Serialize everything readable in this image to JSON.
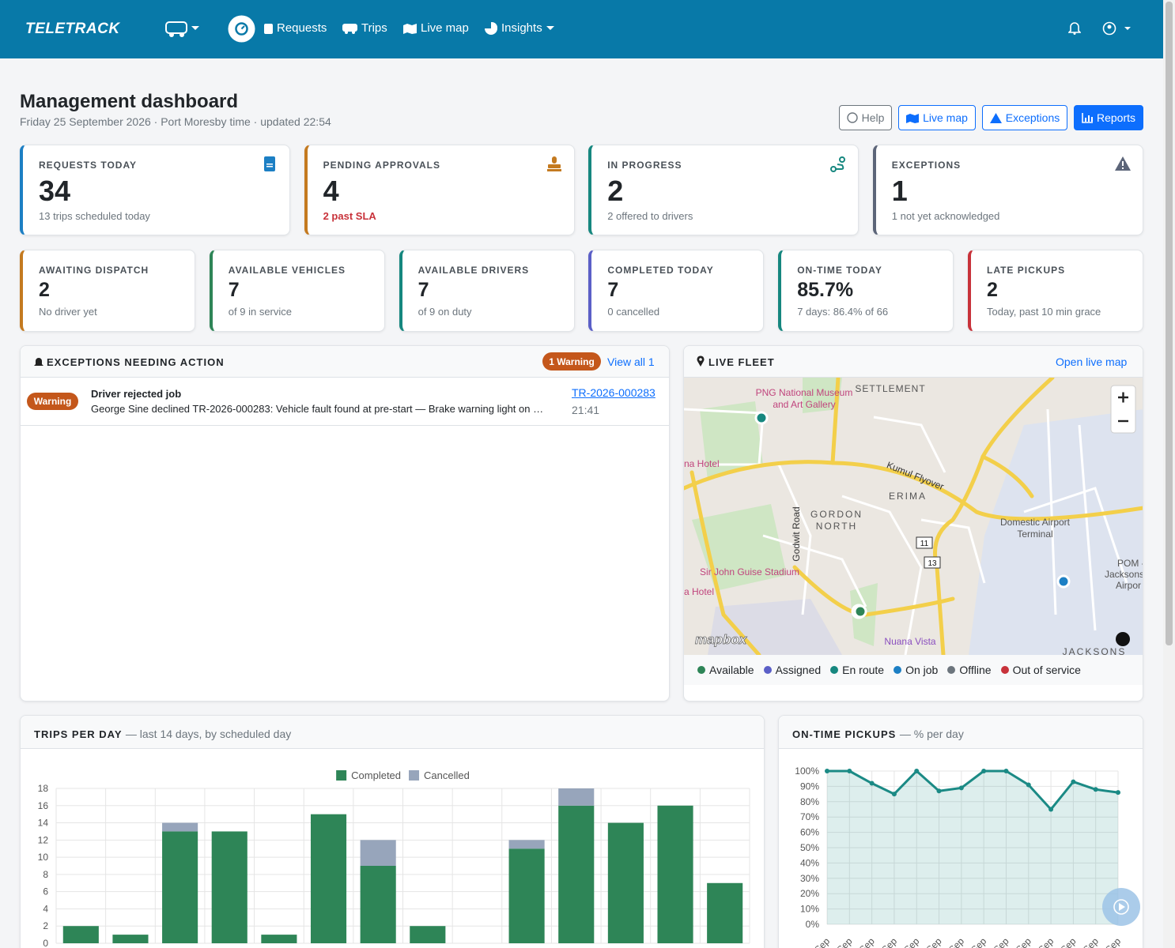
{
  "nav": {
    "logo": "TELETRACK",
    "links": [
      "Requests",
      "Trips",
      "Live map",
      "Insights"
    ]
  },
  "header": {
    "title": "Management dashboard",
    "subtitle": "Friday 25 September 2026 · Port Moresby time · updated 22:54",
    "buttons": [
      "Help",
      "Live map",
      "Exceptions",
      "Reports"
    ]
  },
  "kpis_primary": [
    {
      "label": "REQUESTS TODAY",
      "value": "34",
      "note": "13 trips scheduled today",
      "color": "#1c7fc4"
    },
    {
      "label": "PENDING APPROVALS",
      "value": "4",
      "note": "2 past SLA",
      "color": "#c47a20"
    },
    {
      "label": "IN PROGRESS",
      "value": "2",
      "note": "2 offered to drivers",
      "color": "#16877f"
    },
    {
      "label": "EXCEPTIONS",
      "value": "1",
      "note": "1 not yet acknowledged",
      "color": "#5c6579"
    }
  ],
  "kpis_secondary": [
    {
      "label": "AWAITING DISPATCH",
      "value": "2",
      "note": "No driver yet",
      "color": "#c47a20"
    },
    {
      "label": "AVAILABLE VEHICLES",
      "value": "7",
      "note": "of 9 in service",
      "color": "#2e8557"
    },
    {
      "label": "AVAILABLE DRIVERS",
      "value": "7",
      "note": "of 9 on duty",
      "color": "#16877f"
    },
    {
      "label": "COMPLETED TODAY",
      "value": "7",
      "note": "0 cancelled",
      "color": "#5b5fc7"
    },
    {
      "label": "ON-TIME TODAY",
      "value": "85.7%",
      "note": "7 days: 86.4% of 66",
      "color": "#16877f"
    },
    {
      "label": "LATE PICKUPS",
      "value": "2",
      "note": "Today, past 10 min grace",
      "color": "#c8323a"
    }
  ],
  "exceptions": {
    "title": "EXCEPTIONS NEEDING ACTION",
    "badge": "1 Warning",
    "link": "View all 1",
    "items": [
      {
        "level": "Warning",
        "title": "Driver rejected job",
        "text": "George Sine declined TR-2026-000283: Vehicle fault found at pre-start — Brake warning light on …",
        "ref": "TR-2026-000283",
        "time": "21:41"
      }
    ]
  },
  "fleet": {
    "title": "LIVE FLEET",
    "link": "Open live map",
    "map_labels": [
      "PNG National Museum",
      "and Art Gallery",
      "SETTLEMENT",
      "Kumul Flyover",
      "ERIMA",
      "GORDON",
      "NORTH",
      "Godwit Road",
      "Domestic Airport",
      "Terminal",
      "Sir John Guise Stadium",
      "na Hotel",
      "a Hotel",
      "POM -",
      "Jacksons Inter",
      "Airpor",
      "Nuana Vista",
      "JACKSONS",
      "11",
      "13"
    ],
    "attribution": "mapbox",
    "legend": [
      {
        "name": "Available",
        "color": "#2e8557"
      },
      {
        "name": "Assigned",
        "color": "#5b5fc7"
      },
      {
        "name": "En route",
        "color": "#16877f"
      },
      {
        "name": "On job",
        "color": "#1c7fc4"
      },
      {
        "name": "Offline",
        "color": "#6c757d"
      },
      {
        "name": "Out of service",
        "color": "#c8323a"
      }
    ]
  },
  "chart_data": [
    {
      "type": "bar",
      "stacked": true,
      "title": "TRIPS PER DAY",
      "subtitle": "— last 14 days, by scheduled day",
      "categories": [
        null,
        null,
        null,
        null,
        null,
        null,
        null,
        null,
        null,
        null,
        null,
        null,
        null,
        null
      ],
      "series": [
        {
          "name": "Completed",
          "color": "#2e8557",
          "values": [
            2,
            1,
            13,
            13,
            1,
            15,
            9,
            2,
            0,
            11,
            16,
            14,
            16,
            7
          ]
        },
        {
          "name": "Cancelled",
          "color": "#97a5bb",
          "values": [
            0,
            0,
            1,
            0,
            0,
            0,
            3,
            0,
            0,
            1,
            2,
            0,
            0,
            0
          ]
        }
      ],
      "ylim": [
        0,
        18
      ],
      "yticks": [
        0,
        2,
        4,
        6,
        8,
        10,
        12,
        14,
        16,
        18
      ],
      "grid": true,
      "legend": "top"
    },
    {
      "type": "line",
      "title": "ON-TIME PICKUPS",
      "subtitle": "— % per day",
      "categories": [
        "Sep",
        "Sep",
        "Sep",
        "Sep",
        "Sep",
        "Sep",
        "Sep",
        "Sep",
        "Sep",
        "Sep",
        "Sep",
        "Sep",
        "Sep",
        "Sep"
      ],
      "values": [
        100,
        100,
        92,
        85,
        100,
        87,
        89,
        100,
        100,
        91,
        75,
        93,
        88,
        86
      ],
      "color": "#1b8a85",
      "fill": true,
      "ylim": [
        0,
        100
      ],
      "yticks": [
        {
          "value": 0,
          "label": "0%"
        },
        {
          "value": 10,
          "label": "10%"
        },
        {
          "value": 20,
          "label": "20%"
        },
        {
          "value": 30,
          "label": "30%"
        },
        {
          "value": 40,
          "label": "40%"
        },
        {
          "value": 50,
          "label": "50%"
        },
        {
          "value": 60,
          "label": "60%"
        },
        {
          "value": 70,
          "label": "70%"
        },
        {
          "value": 80,
          "label": "80%"
        },
        {
          "value": 90,
          "label": "90%"
        },
        {
          "value": 100,
          "label": "100%"
        }
      ],
      "grid": true
    }
  ]
}
